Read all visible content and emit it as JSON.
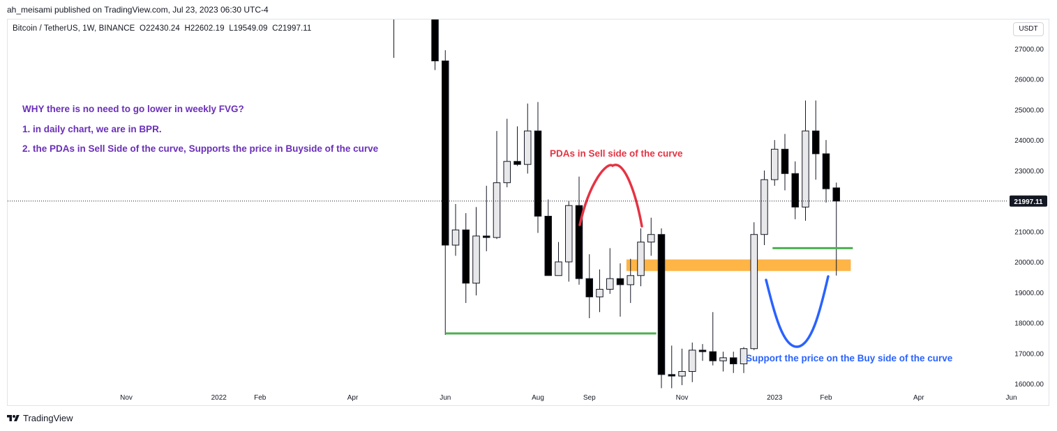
{
  "header": {
    "publish_line": "ah_meisami published on TradingView.com, Jul 23, 2023 06:30 UTC-4"
  },
  "symbol": {
    "name": "Bitcoin / TetherUS, 1W, BINANCE",
    "open": "O22430.24",
    "high": "H22602.19",
    "low": "L19549.09",
    "close": "C21997.11"
  },
  "currency_button": "USDT",
  "notes": {
    "line1": "WHY there is no need to go lower in weekly FVG?",
    "line2": "1. in daily chart, we are in BPR.",
    "line3": "2. the PDAs in Sell Side of the curve, Supports the price in Buyside of the curve"
  },
  "annotations": {
    "sell_side": "PDAs in Sell side of the curve",
    "buy_side": "Support the price on the Buy side of the curve"
  },
  "footer": {
    "brand": "TradingView"
  },
  "colors": {
    "bull": "#ffffff",
    "bull_fill": "#e0e0e0",
    "bear": "#000000",
    "green_line": "#4caf50",
    "orange_zone": "#ffa726",
    "red_curve": "#e53343",
    "blue_curve": "#2962ff",
    "note_purple": "#6a2fb8"
  },
  "chart_data": {
    "type": "candlestick",
    "timeframe": "1W",
    "ylim": [
      15700,
      27700
    ],
    "y_ticks": [
      16000,
      17000,
      18000,
      19000,
      20000,
      21000,
      22000,
      23000,
      24000,
      25000,
      26000,
      27000
    ],
    "y_tick_labels": [
      "16000.00",
      "17000.00",
      "18000.00",
      "19000.00",
      "20000.00",
      "21000.00",
      "22000.00",
      "23000.00",
      "24000.00",
      "25000.00",
      "26000.00",
      "27000.00"
    ],
    "last_price": 21997.11,
    "last_price_label": "21997.11",
    "x_labels": [
      {
        "label": "Nov",
        "week": -26
      },
      {
        "label": "2022",
        "week": -17
      },
      {
        "label": "Feb",
        "week": -13
      },
      {
        "label": "Apr",
        "week": -4
      },
      {
        "label": "Jun",
        "week": 5
      },
      {
        "label": "Aug",
        "week": 14
      },
      {
        "label": "Sep",
        "week": 19
      },
      {
        "label": "Nov",
        "week": 28
      },
      {
        "label": "2023",
        "week": 37
      },
      {
        "label": "Feb",
        "week": 42
      },
      {
        "label": "Apr",
        "week": 51
      },
      {
        "label": "Jun",
        "week": 60
      }
    ],
    "candles": [
      {
        "w": 0,
        "o": 28500,
        "h": 30000,
        "l": 26700,
        "c": 29000
      },
      {
        "w": 4,
        "o": 29500,
        "h": 30100,
        "l": 26300,
        "c": 26600
      },
      {
        "w": 5,
        "o": 26600,
        "h": 26950,
        "l": 17600,
        "c": 20550
      },
      {
        "w": 6,
        "o": 20550,
        "h": 21900,
        "l": 20200,
        "c": 21050
      },
      {
        "w": 7,
        "o": 21050,
        "h": 21600,
        "l": 18650,
        "c": 19300
      },
      {
        "w": 8,
        "o": 19300,
        "h": 21800,
        "l": 18900,
        "c": 20850
      },
      {
        "w": 9,
        "o": 20850,
        "h": 22500,
        "l": 20350,
        "c": 20800
      },
      {
        "w": 10,
        "o": 20800,
        "h": 24300,
        "l": 20750,
        "c": 22600
      },
      {
        "w": 11,
        "o": 22600,
        "h": 24700,
        "l": 22450,
        "c": 23300
      },
      {
        "w": 12,
        "o": 23300,
        "h": 24450,
        "l": 23150,
        "c": 23200
      },
      {
        "w": 13,
        "o": 23200,
        "h": 25200,
        "l": 22900,
        "c": 24300
      },
      {
        "w": 14,
        "o": 24300,
        "h": 25250,
        "l": 20950,
        "c": 21500
      },
      {
        "w": 15,
        "o": 21500,
        "h": 22050,
        "l": 19550,
        "c": 19550
      },
      {
        "w": 16,
        "o": 19550,
        "h": 20650,
        "l": 19550,
        "c": 20000
      },
      {
        "w": 17,
        "o": 20000,
        "h": 22000,
        "l": 19350,
        "c": 21850
      },
      {
        "w": 18,
        "o": 21850,
        "h": 22800,
        "l": 19250,
        "c": 19450
      },
      {
        "w": 19,
        "o": 19450,
        "h": 20250,
        "l": 18150,
        "c": 18850
      },
      {
        "w": 20,
        "o": 18850,
        "h": 19750,
        "l": 18350,
        "c": 19100
      },
      {
        "w": 21,
        "o": 19100,
        "h": 20450,
        "l": 18950,
        "c": 19450
      },
      {
        "w": 22,
        "o": 19450,
        "h": 19950,
        "l": 18200,
        "c": 19250
      },
      {
        "w": 23,
        "o": 19250,
        "h": 20100,
        "l": 18650,
        "c": 19550
      },
      {
        "w": 24,
        "o": 19550,
        "h": 21100,
        "l": 19200,
        "c": 20650
      },
      {
        "w": 25,
        "o": 20650,
        "h": 21450,
        "l": 20200,
        "c": 20900
      },
      {
        "w": 26,
        "o": 20900,
        "h": 21100,
        "l": 15850,
        "c": 16300
      },
      {
        "w": 27,
        "o": 16300,
        "h": 17250,
        "l": 15850,
        "c": 16250
      },
      {
        "w": 28,
        "o": 16250,
        "h": 17150,
        "l": 15950,
        "c": 16400
      },
      {
        "w": 29,
        "o": 16400,
        "h": 17350,
        "l": 16050,
        "c": 17100
      },
      {
        "w": 30,
        "o": 17100,
        "h": 17300,
        "l": 16750,
        "c": 17050
      },
      {
        "w": 31,
        "o": 17050,
        "h": 18350,
        "l": 16600,
        "c": 16750
      },
      {
        "w": 32,
        "o": 16750,
        "h": 17050,
        "l": 16400,
        "c": 16850
      },
      {
        "w": 33,
        "o": 16850,
        "h": 17050,
        "l": 16350,
        "c": 16650
      },
      {
        "w": 34,
        "o": 16650,
        "h": 17200,
        "l": 16350,
        "c": 17150
      },
      {
        "w": 35,
        "o": 17150,
        "h": 21300,
        "l": 17100,
        "c": 20900
      },
      {
        "w": 36,
        "o": 20900,
        "h": 23000,
        "l": 20550,
        "c": 22700
      },
      {
        "w": 37,
        "o": 22700,
        "h": 24000,
        "l": 22500,
        "c": 23700
      },
      {
        "w": 38,
        "o": 23700,
        "h": 24200,
        "l": 22350,
        "c": 22900
      },
      {
        "w": 39,
        "o": 22900,
        "h": 23300,
        "l": 21400,
        "c": 21800
      },
      {
        "w": 40,
        "o": 21800,
        "h": 25300,
        "l": 21350,
        "c": 24300
      },
      {
        "w": 41,
        "o": 24300,
        "h": 25300,
        "l": 22700,
        "c": 23550
      },
      {
        "w": 42,
        "o": 23550,
        "h": 24000,
        "l": 21950,
        "c": 22400
      },
      {
        "w": 43,
        "o": 22430.24,
        "h": 22602.19,
        "l": 19549.09,
        "c": 21997.11
      }
    ],
    "lines": [
      {
        "name": "support-line-low",
        "w1": 5,
        "w2": 25.5,
        "price": 17650
      },
      {
        "name": "support-line-high",
        "w1": 36.8,
        "w2": 44.6,
        "price": 20450
      }
    ],
    "zone": {
      "w1": 22.6,
      "w2": 44.4,
      "price_low": 19700,
      "price_high": 20080
    }
  }
}
